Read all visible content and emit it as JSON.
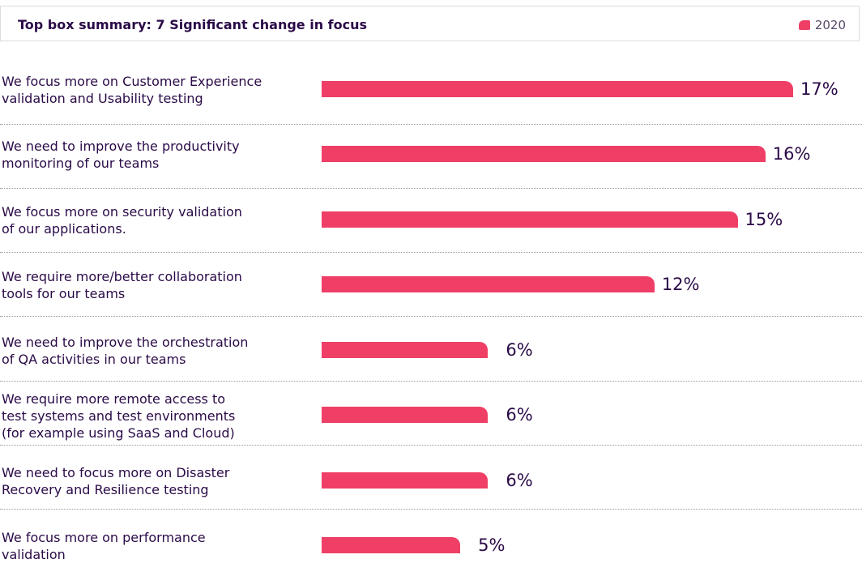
{
  "header": {
    "title": "Top box summary: 7 Significant change in focus",
    "legend_label": "2020"
  },
  "colors": {
    "bar": "#ef3f66",
    "text": "#2a0a47"
  },
  "chart_data": {
    "type": "bar",
    "orientation": "horizontal",
    "categories": [
      "We focus more on Customer Experience validation and Usability testing",
      "We need to improve the productivity monitoring of our teams",
      "We focus more on security validation of our applications.",
      "We require more/better collaboration tools for our teams",
      "We need to improve the orchestration of QA activities in our teams",
      "We require more remote access to test systems and test environments (for example using SaaS and Cloud)",
      "We need to focus more on Disaster Recovery and Resilience testing",
      "We focus more on performance validation"
    ],
    "label_lines": [
      [
        "We focus more on Customer Experience",
        "validation and Usability testing"
      ],
      [
        "We need to improve the productivity",
        "monitoring of our teams"
      ],
      [
        "We focus more on security validation",
        "of our applications."
      ],
      [
        "We require more/better collaboration",
        "tools for our teams"
      ],
      [
        "We need to improve the orchestration",
        "of QA activities in our teams"
      ],
      [
        "We require more remote access to",
        "test systems and test environments",
        "(for example using SaaS and Cloud)"
      ],
      [
        "We need to focus more on Disaster",
        "Recovery and Resilience testing"
      ],
      [
        "We focus more on performance",
        "validation"
      ]
    ],
    "series": [
      {
        "name": "2020",
        "values": [
          17,
          16,
          15,
          12,
          6,
          6,
          6,
          5
        ]
      }
    ],
    "value_labels": [
      "17%",
      "16%",
      "15%",
      "12%",
      "6%",
      "6%",
      "6%",
      "5%"
    ],
    "xlim": [
      0,
      17
    ],
    "legend": "top-right"
  }
}
